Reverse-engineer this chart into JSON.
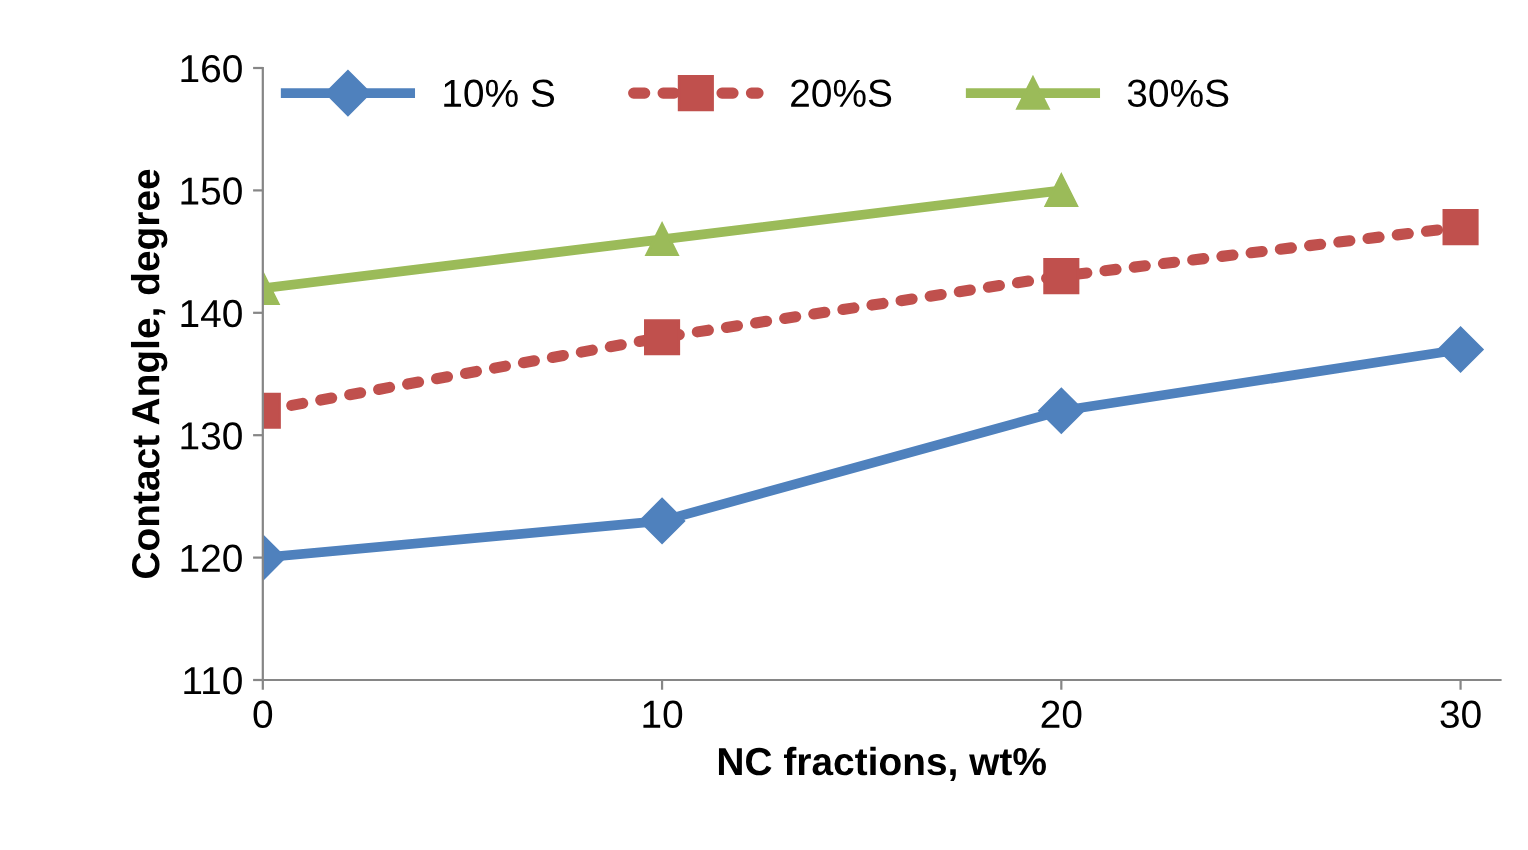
{
  "chart_data": {
    "type": "line",
    "xlabel": "NC fractions, wt%",
    "ylabel": "Contact Angle, degree",
    "x": [
      0,
      10,
      20,
      30
    ],
    "series": [
      {
        "name": "10% S",
        "color": "#4f81bd",
        "marker": "diamond",
        "line_style": "solid",
        "values": [
          120,
          123,
          132,
          137
        ]
      },
      {
        "name": "20%S",
        "color": "#c0504d",
        "marker": "square",
        "line_style": "dotted",
        "values": [
          132,
          138,
          143,
          147
        ]
      },
      {
        "name": "30%S",
        "color": "#9bbb59",
        "marker": "triangle",
        "line_style": "solid",
        "values": [
          142,
          146,
          150,
          null
        ]
      }
    ],
    "xlim": [
      0,
      31
    ],
    "xticks": [
      0,
      10,
      20,
      30
    ],
    "ylim": [
      110,
      160
    ],
    "yticks": [
      110,
      120,
      130,
      140,
      150,
      160
    ],
    "grid": false,
    "legend": "top"
  }
}
